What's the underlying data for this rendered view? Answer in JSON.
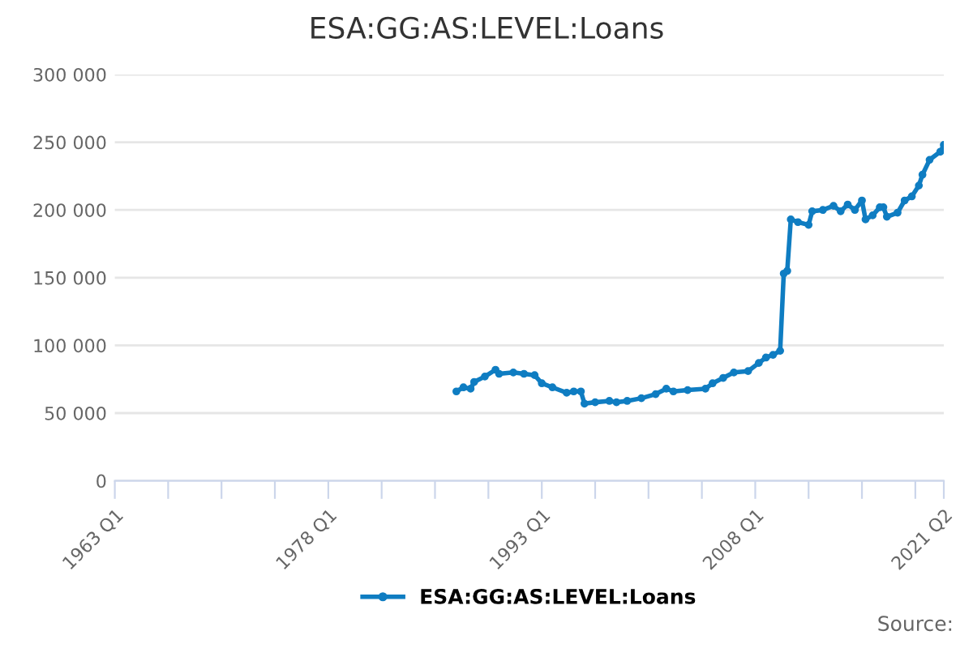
{
  "chart_data": {
    "type": "line",
    "title": "ESA:GG:AS:LEVEL:Loans",
    "annotations": [
      "Source:"
    ],
    "x": [
      "1987-01",
      "1987-07",
      "1988-01",
      "1988-04",
      "1989-01",
      "1989-10",
      "1990-01",
      "1991-01",
      "1991-10",
      "1992-07",
      "1993-01",
      "1993-10",
      "1994-10",
      "1995-04",
      "1995-10",
      "1996-01",
      "1996-10",
      "1997-10",
      "1998-04",
      "1999-01",
      "2000-01",
      "2001-01",
      "2001-10",
      "2002-04",
      "2003-04",
      "2004-07",
      "2005-01",
      "2005-10",
      "2006-07",
      "2007-07",
      "2008-04",
      "2008-10",
      "2009-04",
      "2009-10",
      "2010-01",
      "2010-04",
      "2010-07",
      "2011-01",
      "2011-10",
      "2012-01",
      "2012-10",
      "2013-07",
      "2014-01",
      "2014-07",
      "2015-01",
      "2015-07",
      "2015-10",
      "2016-04",
      "2016-10",
      "2017-01",
      "2017-04",
      "2018-01",
      "2018-07",
      "2019-01",
      "2019-07",
      "2019-10",
      "2020-04",
      "2021-01",
      "2021-04"
    ],
    "series": [
      {
        "name": "ESA:GG:AS:LEVEL:Loans",
        "color": "#0f7dc2",
        "values": [
          66000,
          69000,
          68000,
          73000,
          77000,
          82000,
          79000,
          80000,
          79000,
          78000,
          72000,
          69000,
          65000,
          66000,
          66000,
          57000,
          58000,
          59000,
          58000,
          59000,
          61000,
          64000,
          68000,
          66000,
          67000,
          68000,
          72000,
          76000,
          80000,
          81000,
          87000,
          91000,
          93000,
          96000,
          153000,
          155000,
          193000,
          191000,
          189000,
          199000,
          200000,
          203000,
          199000,
          204000,
          200000,
          207000,
          193000,
          196000,
          202000,
          202000,
          195000,
          198000,
          207000,
          210000,
          218000,
          226000,
          237000,
          243000,
          248000
        ]
      }
    ],
    "xlim": [
      "1963-01",
      "2021-04"
    ],
    "xticks": [
      {
        "value": "1963-01",
        "label": "1963 Q1"
      },
      {
        "value": "1966-10",
        "label": null
      },
      {
        "value": "1970-07",
        "label": null
      },
      {
        "value": "1974-04",
        "label": null
      },
      {
        "value": "1978-01",
        "label": "1978 Q1"
      },
      {
        "value": "1981-10",
        "label": null
      },
      {
        "value": "1985-07",
        "label": null
      },
      {
        "value": "1989-04",
        "label": null
      },
      {
        "value": "1993-01",
        "label": "1993 Q1"
      },
      {
        "value": "1996-10",
        "label": null
      },
      {
        "value": "2000-07",
        "label": null
      },
      {
        "value": "2004-04",
        "label": null
      },
      {
        "value": "2008-01",
        "label": "2008 Q1"
      },
      {
        "value": "2011-10",
        "label": null
      },
      {
        "value": "2015-07",
        "label": null
      },
      {
        "value": "2019-04",
        "label": null
      },
      {
        "value": "2021-04",
        "label": "2021 Q2"
      }
    ],
    "ylim": [
      0,
      300000
    ],
    "yticks": [
      {
        "value": 0,
        "label": "0"
      },
      {
        "value": 50000,
        "label": "50 000"
      },
      {
        "value": 100000,
        "label": "100 000"
      },
      {
        "value": 150000,
        "label": "150 000"
      },
      {
        "value": 200000,
        "label": "200 000"
      },
      {
        "value": 250000,
        "label": "250 000"
      },
      {
        "value": 300000,
        "label": "300 000"
      }
    ],
    "grid": "y",
    "legend": "bottom",
    "marker": "circle",
    "line_style": "solid"
  }
}
